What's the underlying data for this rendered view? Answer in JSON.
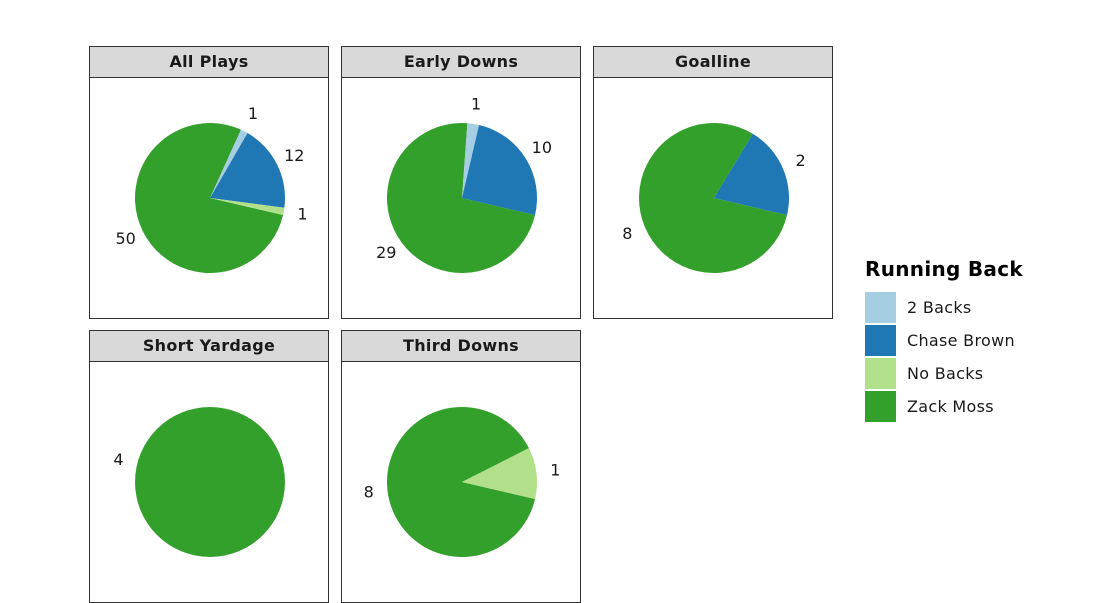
{
  "chart_data": {
    "type": "pie",
    "legend": {
      "title": "Running Back",
      "position": "right",
      "entries": [
        {
          "name": "2 Backs",
          "color": "#a6cee3"
        },
        {
          "name": "Chase Brown",
          "color": "#1f78b4"
        },
        {
          "name": "No Backs",
          "color": "#b2df8a"
        },
        {
          "name": "Zack Moss",
          "color": "#33a02c"
        }
      ]
    },
    "panels": [
      {
        "title": "All Plays",
        "slices": [
          {
            "category": "Zack Moss",
            "value": 50
          },
          {
            "category": "2 Backs",
            "value": 1
          },
          {
            "category": "Chase Brown",
            "value": 12
          },
          {
            "category": "No Backs",
            "value": 1
          }
        ]
      },
      {
        "title": "Early Downs",
        "slices": [
          {
            "category": "Zack Moss",
            "value": 29
          },
          {
            "category": "2 Backs",
            "value": 1
          },
          {
            "category": "Chase Brown",
            "value": 10
          }
        ]
      },
      {
        "title": "Goalline",
        "slices": [
          {
            "category": "Zack Moss",
            "value": 8
          },
          {
            "category": "Chase Brown",
            "value": 2
          }
        ]
      },
      {
        "title": "Short Yardage",
        "slices": [
          {
            "category": "Zack Moss",
            "value": 4
          }
        ]
      },
      {
        "title": "Third Downs",
        "slices": [
          {
            "category": "Zack Moss",
            "value": 8
          },
          {
            "category": "No Backs",
            "value": 1
          }
        ]
      }
    ]
  }
}
